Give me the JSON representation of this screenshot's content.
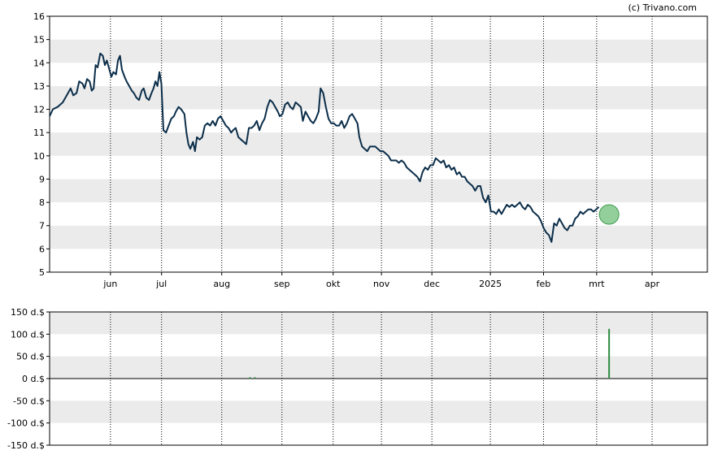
{
  "copyright": "(c) Trivano.com",
  "colors": {
    "price_line": "#0b2e4a",
    "band": "#ebebeb",
    "grid": "#000000",
    "volume_bar": "#2e8b40",
    "marker_fill": "#6fbf7a",
    "marker_stroke": "#3d9a4e"
  },
  "chart_data": [
    {
      "type": "line",
      "name": "price",
      "ylim": [
        5,
        16
      ],
      "y_ticks": [
        5,
        6,
        7,
        8,
        9,
        10,
        11,
        12,
        13,
        14,
        15,
        16
      ],
      "x_tick_labels": [
        "jun",
        "jul",
        "aug",
        "sep",
        "okt",
        "nov",
        "dec",
        "2025",
        "feb",
        "mrt",
        "apr"
      ],
      "x_tick_positions": [
        0.0925,
        0.1702,
        0.2617,
        0.3532,
        0.4311,
        0.5045,
        0.5812,
        0.6701,
        0.7509,
        0.8317,
        0.916
      ],
      "grid": "vertical dotted at month ticks, alternating horizontal bands",
      "series": [
        {
          "values": [
            [
              0.0,
              11.7
            ],
            [
              0.005,
              12.0
            ],
            [
              0.012,
              12.1
            ],
            [
              0.02,
              12.3
            ],
            [
              0.028,
              12.7
            ],
            [
              0.032,
              12.9
            ],
            [
              0.036,
              12.6
            ],
            [
              0.041,
              12.7
            ],
            [
              0.045,
              13.2
            ],
            [
              0.05,
              13.1
            ],
            [
              0.053,
              12.9
            ],
            [
              0.057,
              13.3
            ],
            [
              0.061,
              13.2
            ],
            [
              0.064,
              12.8
            ],
            [
              0.067,
              12.9
            ],
            [
              0.07,
              13.9
            ],
            [
              0.073,
              13.8
            ],
            [
              0.077,
              14.4
            ],
            [
              0.081,
              14.3
            ],
            [
              0.084,
              13.9
            ],
            [
              0.087,
              14.1
            ],
            [
              0.09,
              13.8
            ],
            [
              0.094,
              13.4
            ],
            [
              0.097,
              13.6
            ],
            [
              0.101,
              13.5
            ],
            [
              0.104,
              14.1
            ],
            [
              0.107,
              14.3
            ],
            [
              0.11,
              13.7
            ],
            [
              0.114,
              13.4
            ],
            [
              0.117,
              13.2
            ],
            [
              0.121,
              13.0
            ],
            [
              0.125,
              12.8
            ],
            [
              0.128,
              12.7
            ],
            [
              0.132,
              12.5
            ],
            [
              0.136,
              12.4
            ],
            [
              0.14,
              12.8
            ],
            [
              0.143,
              12.9
            ],
            [
              0.147,
              12.5
            ],
            [
              0.151,
              12.4
            ],
            [
              0.155,
              12.7
            ],
            [
              0.158,
              12.9
            ],
            [
              0.161,
              13.2
            ],
            [
              0.164,
              13.0
            ],
            [
              0.167,
              13.6
            ],
            [
              0.17,
              13.1
            ],
            [
              0.173,
              11.1
            ],
            [
              0.177,
              11.0
            ],
            [
              0.181,
              11.3
            ],
            [
              0.185,
              11.6
            ],
            [
              0.189,
              11.7
            ],
            [
              0.192,
              11.9
            ],
            [
              0.196,
              12.1
            ],
            [
              0.2,
              12.0
            ],
            [
              0.205,
              11.8
            ],
            [
              0.208,
              11.0
            ],
            [
              0.211,
              10.5
            ],
            [
              0.214,
              10.3
            ],
            [
              0.218,
              10.6
            ],
            [
              0.221,
              10.2
            ],
            [
              0.224,
              10.8
            ],
            [
              0.228,
              10.7
            ],
            [
              0.232,
              10.8
            ],
            [
              0.236,
              11.3
            ],
            [
              0.24,
              11.4
            ],
            [
              0.244,
              11.3
            ],
            [
              0.248,
              11.5
            ],
            [
              0.252,
              11.3
            ],
            [
              0.256,
              11.6
            ],
            [
              0.26,
              11.7
            ],
            [
              0.264,
              11.5
            ],
            [
              0.268,
              11.3
            ],
            [
              0.272,
              11.2
            ],
            [
              0.276,
              11.0
            ],
            [
              0.279,
              11.1
            ],
            [
              0.283,
              11.2
            ],
            [
              0.287,
              10.8
            ],
            [
              0.291,
              10.7
            ],
            [
              0.295,
              10.6
            ],
            [
              0.299,
              10.5
            ],
            [
              0.303,
              11.2
            ],
            [
              0.307,
              11.2
            ],
            [
              0.311,
              11.3
            ],
            [
              0.315,
              11.5
            ],
            [
              0.319,
              11.1
            ],
            [
              0.323,
              11.4
            ],
            [
              0.327,
              11.6
            ],
            [
              0.331,
              12.1
            ],
            [
              0.335,
              12.4
            ],
            [
              0.339,
              12.3
            ],
            [
              0.343,
              12.1
            ],
            [
              0.347,
              11.9
            ],
            [
              0.35,
              11.7
            ],
            [
              0.354,
              11.8
            ],
            [
              0.358,
              12.2
            ],
            [
              0.362,
              12.3
            ],
            [
              0.366,
              12.1
            ],
            [
              0.37,
              12.0
            ],
            [
              0.374,
              12.3
            ],
            [
              0.378,
              12.2
            ],
            [
              0.382,
              12.1
            ],
            [
              0.385,
              11.5
            ],
            [
              0.389,
              11.9
            ],
            [
              0.393,
              11.7
            ],
            [
              0.397,
              11.5
            ],
            [
              0.401,
              11.4
            ],
            [
              0.405,
              11.6
            ],
            [
              0.409,
              11.9
            ],
            [
              0.412,
              12.9
            ],
            [
              0.416,
              12.7
            ],
            [
              0.42,
              12.1
            ],
            [
              0.424,
              11.6
            ],
            [
              0.428,
              11.4
            ],
            [
              0.432,
              11.4
            ],
            [
              0.436,
              11.3
            ],
            [
              0.44,
              11.3
            ],
            [
              0.444,
              11.5
            ],
            [
              0.448,
              11.2
            ],
            [
              0.452,
              11.4
            ],
            [
              0.456,
              11.7
            ],
            [
              0.46,
              11.8
            ],
            [
              0.464,
              11.6
            ],
            [
              0.468,
              11.4
            ],
            [
              0.471,
              10.8
            ],
            [
              0.475,
              10.4
            ],
            [
              0.479,
              10.3
            ],
            [
              0.483,
              10.2
            ],
            [
              0.487,
              10.4
            ],
            [
              0.491,
              10.4
            ],
            [
              0.495,
              10.4
            ],
            [
              0.499,
              10.3
            ],
            [
              0.503,
              10.2
            ],
            [
              0.507,
              10.2
            ],
            [
              0.511,
              10.1
            ],
            [
              0.515,
              10.0
            ],
            [
              0.519,
              9.8
            ],
            [
              0.523,
              9.8
            ],
            [
              0.527,
              9.8
            ],
            [
              0.531,
              9.7
            ],
            [
              0.535,
              9.8
            ],
            [
              0.539,
              9.7
            ],
            [
              0.543,
              9.5
            ],
            [
              0.547,
              9.4
            ],
            [
              0.551,
              9.3
            ],
            [
              0.555,
              9.2
            ],
            [
              0.559,
              9.1
            ],
            [
              0.563,
              8.9
            ],
            [
              0.567,
              9.3
            ],
            [
              0.571,
              9.5
            ],
            [
              0.575,
              9.4
            ],
            [
              0.579,
              9.6
            ],
            [
              0.583,
              9.6
            ],
            [
              0.587,
              9.9
            ],
            [
              0.591,
              9.8
            ],
            [
              0.595,
              9.7
            ],
            [
              0.599,
              9.8
            ],
            [
              0.603,
              9.5
            ],
            [
              0.607,
              9.6
            ],
            [
              0.611,
              9.4
            ],
            [
              0.615,
              9.5
            ],
            [
              0.619,
              9.2
            ],
            [
              0.623,
              9.3
            ],
            [
              0.627,
              9.1
            ],
            [
              0.631,
              9.1
            ],
            [
              0.635,
              8.9
            ],
            [
              0.639,
              8.8
            ],
            [
              0.643,
              8.7
            ],
            [
              0.647,
              8.5
            ],
            [
              0.651,
              8.7
            ],
            [
              0.655,
              8.7
            ],
            [
              0.659,
              8.2
            ],
            [
              0.663,
              8.0
            ],
            [
              0.667,
              8.3
            ],
            [
              0.671,
              7.6
            ],
            [
              0.675,
              7.6
            ],
            [
              0.679,
              7.5
            ],
            [
              0.683,
              7.7
            ],
            [
              0.687,
              7.5
            ],
            [
              0.691,
              7.7
            ],
            [
              0.695,
              7.9
            ],
            [
              0.699,
              7.8
            ],
            [
              0.703,
              7.9
            ],
            [
              0.707,
              7.8
            ],
            [
              0.711,
              7.9
            ],
            [
              0.715,
              8.0
            ],
            [
              0.719,
              7.8
            ],
            [
              0.723,
              7.7
            ],
            [
              0.727,
              7.9
            ],
            [
              0.731,
              7.8
            ],
            [
              0.735,
              7.6
            ],
            [
              0.739,
              7.5
            ],
            [
              0.743,
              7.4
            ],
            [
              0.747,
              7.2
            ],
            [
              0.751,
              6.9
            ],
            [
              0.755,
              6.7
            ],
            [
              0.759,
              6.6
            ],
            [
              0.763,
              6.3
            ],
            [
              0.767,
              7.1
            ],
            [
              0.771,
              7.0
            ],
            [
              0.775,
              7.3
            ],
            [
              0.779,
              7.1
            ],
            [
              0.783,
              6.9
            ],
            [
              0.787,
              6.8
            ],
            [
              0.791,
              7.0
            ],
            [
              0.795,
              7.0
            ],
            [
              0.799,
              7.3
            ],
            [
              0.803,
              7.4
            ],
            [
              0.807,
              7.6
            ],
            [
              0.811,
              7.5
            ],
            [
              0.815,
              7.6
            ],
            [
              0.819,
              7.7
            ],
            [
              0.823,
              7.7
            ],
            [
              0.827,
              7.6
            ],
            [
              0.831,
              7.7
            ],
            [
              0.835,
              7.8
            ]
          ]
        }
      ],
      "marker": {
        "x": 0.8506,
        "y": 7.48
      }
    },
    {
      "type": "bar",
      "name": "volume",
      "ylim": [
        -150,
        150
      ],
      "y_ticks": [
        150,
        100,
        50,
        0,
        -50,
        -100,
        -150
      ],
      "y_tick_labels": [
        "150 d.$",
        "100 d.$",
        "50 d.$",
        "0 d.$",
        "-50 d.$",
        "-100 d.$",
        "-150 d.$"
      ],
      "bars": [
        {
          "x": 0.3046,
          "value": 3
        },
        {
          "x": 0.312,
          "value": 3
        },
        {
          "x": 0.8506,
          "value": 112
        }
      ]
    }
  ]
}
